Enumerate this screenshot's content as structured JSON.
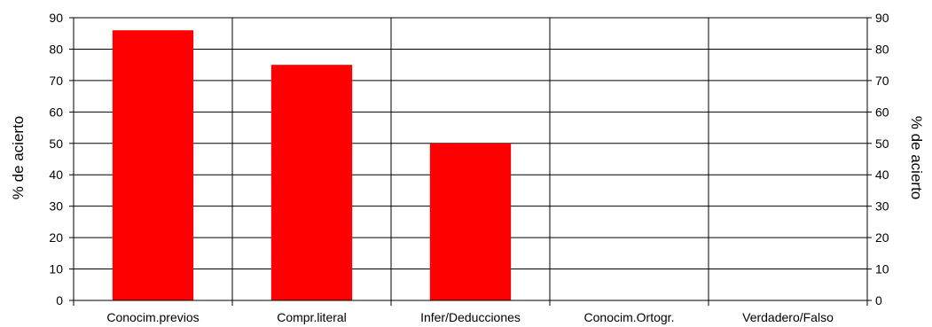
{
  "chart_data": {
    "type": "bar",
    "categories": [
      "Conocim.previos",
      "Compr.literal",
      "Infer/Deducciones",
      "Conocim.Ortogr.",
      "Verdadero/Falso"
    ],
    "values": [
      86,
      75,
      50,
      0,
      0
    ],
    "ylabel": "% de acierto",
    "ylabel_right": "% de acierto",
    "ylim": [
      0,
      90
    ],
    "yticks": [
      0,
      10,
      20,
      30,
      40,
      50,
      60,
      70,
      80,
      90
    ],
    "grid": true,
    "legend": "none",
    "bar_color": "#ff0000"
  }
}
